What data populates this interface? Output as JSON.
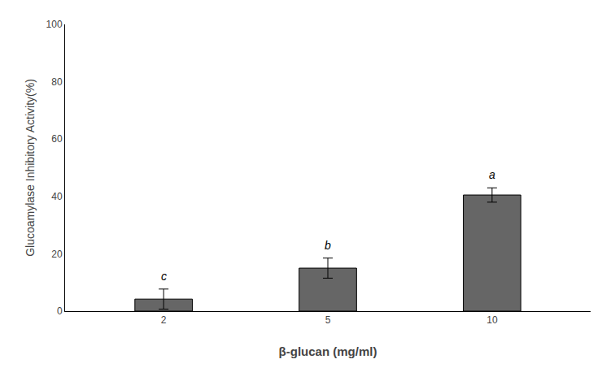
{
  "chart_data": {
    "type": "bar",
    "categories": [
      "2",
      "5",
      "10"
    ],
    "values": [
      4.2,
      15.0,
      40.5
    ],
    "errors": [
      3.5,
      3.5,
      2.5
    ],
    "color": "#666666",
    "xlabel": "β-glucan (mg/ml)",
    "ylabel": "Glucoamylase Inhibitory Activity(%)",
    "ylim": [
      0,
      100
    ],
    "yticks": [
      0,
      20,
      40,
      60,
      80,
      100
    ],
    "annotations": [
      "c",
      "b",
      "a"
    ],
    "grid": false
  }
}
